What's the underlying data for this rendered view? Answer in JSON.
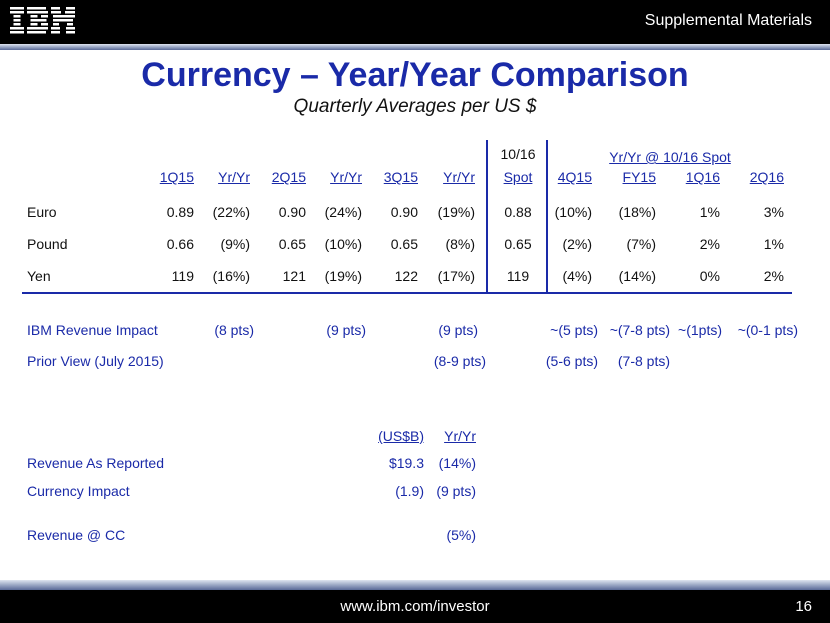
{
  "header": {
    "logo": "IBM",
    "section": "Supplemental Materials"
  },
  "title": "Currency – Year/Year Comparison",
  "subtitle": "Quarterly Averages per US $",
  "table": {
    "spot_header": [
      "10/16",
      "Spot"
    ],
    "group_header": "Yr/Yr @ 10/16 Spot",
    "columns": [
      "1Q15",
      "Yr/Yr",
      "2Q15",
      "Yr/Yr",
      "3Q15",
      "Yr/Yr",
      "Spot",
      "4Q15",
      "FY15",
      "1Q16",
      "2Q16"
    ],
    "rows": [
      {
        "label": "Euro",
        "values": [
          "0.89",
          "(22%)",
          "0.90",
          "(24%)",
          "0.90",
          "(19%)",
          "0.88",
          "(10%)",
          "(18%)",
          "1%",
          "3%"
        ]
      },
      {
        "label": "Pound",
        "values": [
          "0.66",
          "(9%)",
          "0.65",
          "(10%)",
          "0.65",
          "(8%)",
          "0.65",
          "(2%)",
          "(7%)",
          "2%",
          "1%"
        ]
      },
      {
        "label": "Yen",
        "values": [
          "119",
          "(16%)",
          "121",
          "(19%)",
          "122",
          "(17%)",
          "119",
          "(4%)",
          "(14%)",
          "0%",
          "2%"
        ]
      }
    ]
  },
  "impact": {
    "ibm_label": "IBM Revenue Impact",
    "ibm_values": [
      "(8 pts)",
      "(9 pts)",
      "(9 pts)",
      "~(5 pts)",
      "~(7-8 pts)",
      "~(1pts)",
      "~(0-1 pts)"
    ],
    "prior_label": "Prior View (July 2015)",
    "prior_values": [
      "(8-9 pts)",
      "(5-6 pts)",
      "(7-8 pts)"
    ]
  },
  "revenue": {
    "col_headers": [
      "(US$B)",
      "Yr/Yr"
    ],
    "rows": [
      {
        "label": "Revenue As Reported",
        "amount": "$19.3",
        "yy": "(14%)"
      },
      {
        "label": "Currency Impact",
        "amount": "(1.9)",
        "yy": "(9 pts)"
      }
    ],
    "cc_label": "Revenue @ CC",
    "cc_yy": "(5%)"
  },
  "footer": {
    "url": "www.ibm.com/investor",
    "page": "16"
  }
}
